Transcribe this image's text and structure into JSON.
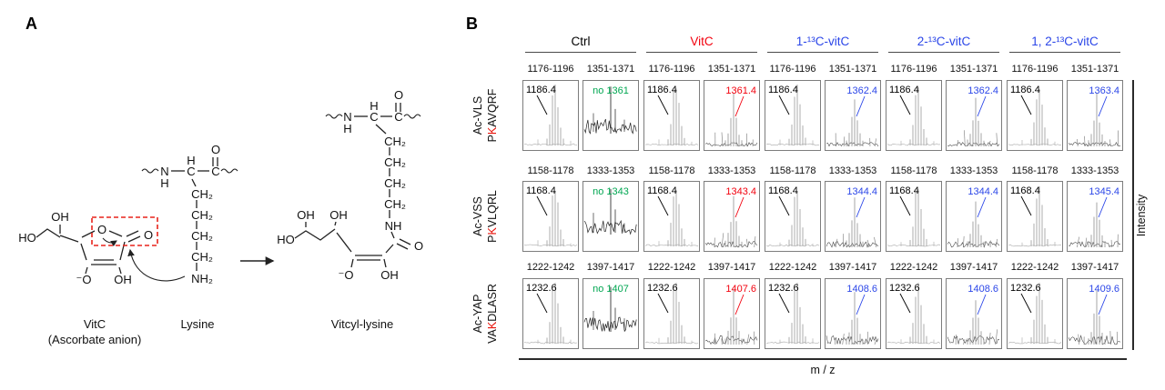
{
  "panel_a": {
    "label": "A",
    "names": {
      "vitc": "VitC",
      "vitc_sub": "(Ascorbate anion)",
      "lysine": "Lysine",
      "product": "Vitcyl-lysine"
    },
    "atoms": {
      "oh": "OH",
      "ho": "HO",
      "o": "O",
      "o_minus": "⁻O",
      "n": "N",
      "h": "H",
      "c": "C",
      "ch2": "CH₂",
      "nh2": "NH₂",
      "nh": "NH"
    }
  },
  "panel_b": {
    "label": "B",
    "xlabel": "m / z",
    "ylabel": "Intensity",
    "columns": [
      {
        "label": "Ctrl",
        "color": "#000000"
      },
      {
        "label": "VitC",
        "color": "#f2000d"
      },
      {
        "label": "1-¹³C-vitC",
        "color": "#2b46e8"
      },
      {
        "label": "2-¹³C-vitC",
        "color": "#2b46e8"
      },
      {
        "label": "1, 2-¹³C-vitC",
        "color": "#2b46e8"
      }
    ],
    "rows": [
      {
        "peptide": {
          "line1": "Ac-VLS",
          "line2_prefix": "P",
          "line2_red": "K",
          "line2_suffix": "AVQRF"
        },
        "ranges": [
          "1176-1196",
          "1351-1371"
        ],
        "cells": [
          {
            "left": {
              "label": "1186.4",
              "color": "#000000"
            },
            "right": {
              "label": "no 1361",
              "color": "#00a651",
              "type": "noise"
            }
          },
          {
            "left": {
              "label": "1186.4",
              "color": "#000000"
            },
            "right": {
              "label": "1361.4",
              "color": "#f2000d",
              "type": "cluster"
            }
          },
          {
            "left": {
              "label": "1186.4",
              "color": "#000000"
            },
            "right": {
              "label": "1362.4",
              "color": "#2b46e8",
              "type": "cluster"
            }
          },
          {
            "left": {
              "label": "1186.4",
              "color": "#000000"
            },
            "right": {
              "label": "1362.4",
              "color": "#2b46e8",
              "type": "cluster"
            }
          },
          {
            "left": {
              "label": "1186.4",
              "color": "#000000"
            },
            "right": {
              "label": "1363.4",
              "color": "#2b46e8",
              "type": "cluster"
            }
          }
        ]
      },
      {
        "peptide": {
          "line1": "Ac-VSS",
          "line2_prefix": "P",
          "line2_red": "K",
          "line2_suffix": "VLQRL"
        },
        "ranges": [
          "1158-1178",
          "1333-1353"
        ],
        "cells": [
          {
            "left": {
              "label": "1168.4",
              "color": "#000000"
            },
            "right": {
              "label": "no 1343",
              "color": "#00a651",
              "type": "noise"
            }
          },
          {
            "left": {
              "label": "1168.4",
              "color": "#000000"
            },
            "right": {
              "label": "1343.4",
              "color": "#f2000d",
              "type": "cluster"
            }
          },
          {
            "left": {
              "label": "1168.4",
              "color": "#000000"
            },
            "right": {
              "label": "1344.4",
              "color": "#2b46e8",
              "type": "cluster"
            }
          },
          {
            "left": {
              "label": "1168.4",
              "color": "#000000"
            },
            "right": {
              "label": "1344.4",
              "color": "#2b46e8",
              "type": "cluster"
            }
          },
          {
            "left": {
              "label": "1168.4",
              "color": "#000000"
            },
            "right": {
              "label": "1345.4",
              "color": "#2b46e8",
              "type": "cluster"
            }
          }
        ]
      },
      {
        "peptide": {
          "line1": "Ac-YAP",
          "line2_prefix": "VA",
          "line2_red": "K",
          "line2_suffix": "DLASR"
        },
        "ranges": [
          "1222-1242",
          "1397-1417"
        ],
        "cells": [
          {
            "left": {
              "label": "1232.6",
              "color": "#000000"
            },
            "right": {
              "label": "no 1407",
              "color": "#00a651",
              "type": "noise"
            }
          },
          {
            "left": {
              "label": "1232.6",
              "color": "#000000"
            },
            "right": {
              "label": "1407.6",
              "color": "#f2000d",
              "type": "cluster"
            }
          },
          {
            "left": {
              "label": "1232.6",
              "color": "#000000"
            },
            "right": {
              "label": "1408.6",
              "color": "#2b46e8",
              "type": "cluster"
            }
          },
          {
            "left": {
              "label": "1232.6",
              "color": "#000000"
            },
            "right": {
              "label": "1408.6",
              "color": "#2b46e8",
              "type": "cluster"
            }
          },
          {
            "left": {
              "label": "1232.6",
              "color": "#000000"
            },
            "right": {
              "label": "1409.6",
              "color": "#2b46e8",
              "type": "cluster"
            }
          }
        ]
      }
    ]
  }
}
